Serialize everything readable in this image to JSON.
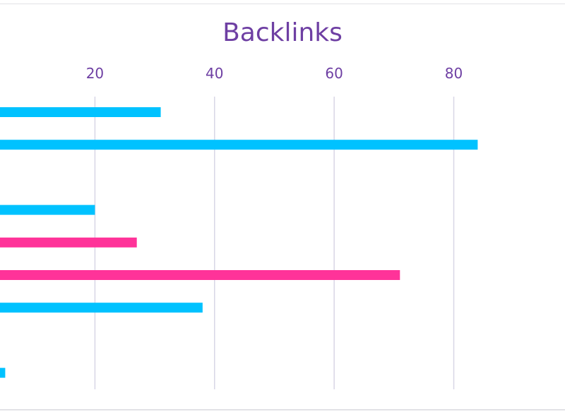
{
  "chart_data": {
    "type": "bar",
    "orientation": "horizontal",
    "title": "Backlinks",
    "xlabel": "",
    "ylabel": "",
    "xticks": [
      20,
      40,
      60,
      80
    ],
    "xlim": [
      2,
      96
    ],
    "grid": true,
    "bars": [
      {
        "value": 31,
        "color": "#00c2ff"
      },
      {
        "value": 84,
        "color": "#00c2ff"
      },
      {
        "value": null,
        "color": "#00c2ff"
      },
      {
        "value": 20,
        "color": "#00c2ff"
      },
      {
        "value": 27,
        "color": "#ff3399"
      },
      {
        "value": 71,
        "color": "#ff3399"
      },
      {
        "value": 38,
        "color": "#00c2ff"
      },
      {
        "value": 4,
        "color": "#ff3399"
      },
      {
        "value": 5,
        "color": "#00c2ff"
      }
    ]
  },
  "colors": {
    "title": "#6e3fa3",
    "grid": "#d8d6e6",
    "series_blue": "#00c2ff",
    "series_pink": "#ff3399"
  }
}
